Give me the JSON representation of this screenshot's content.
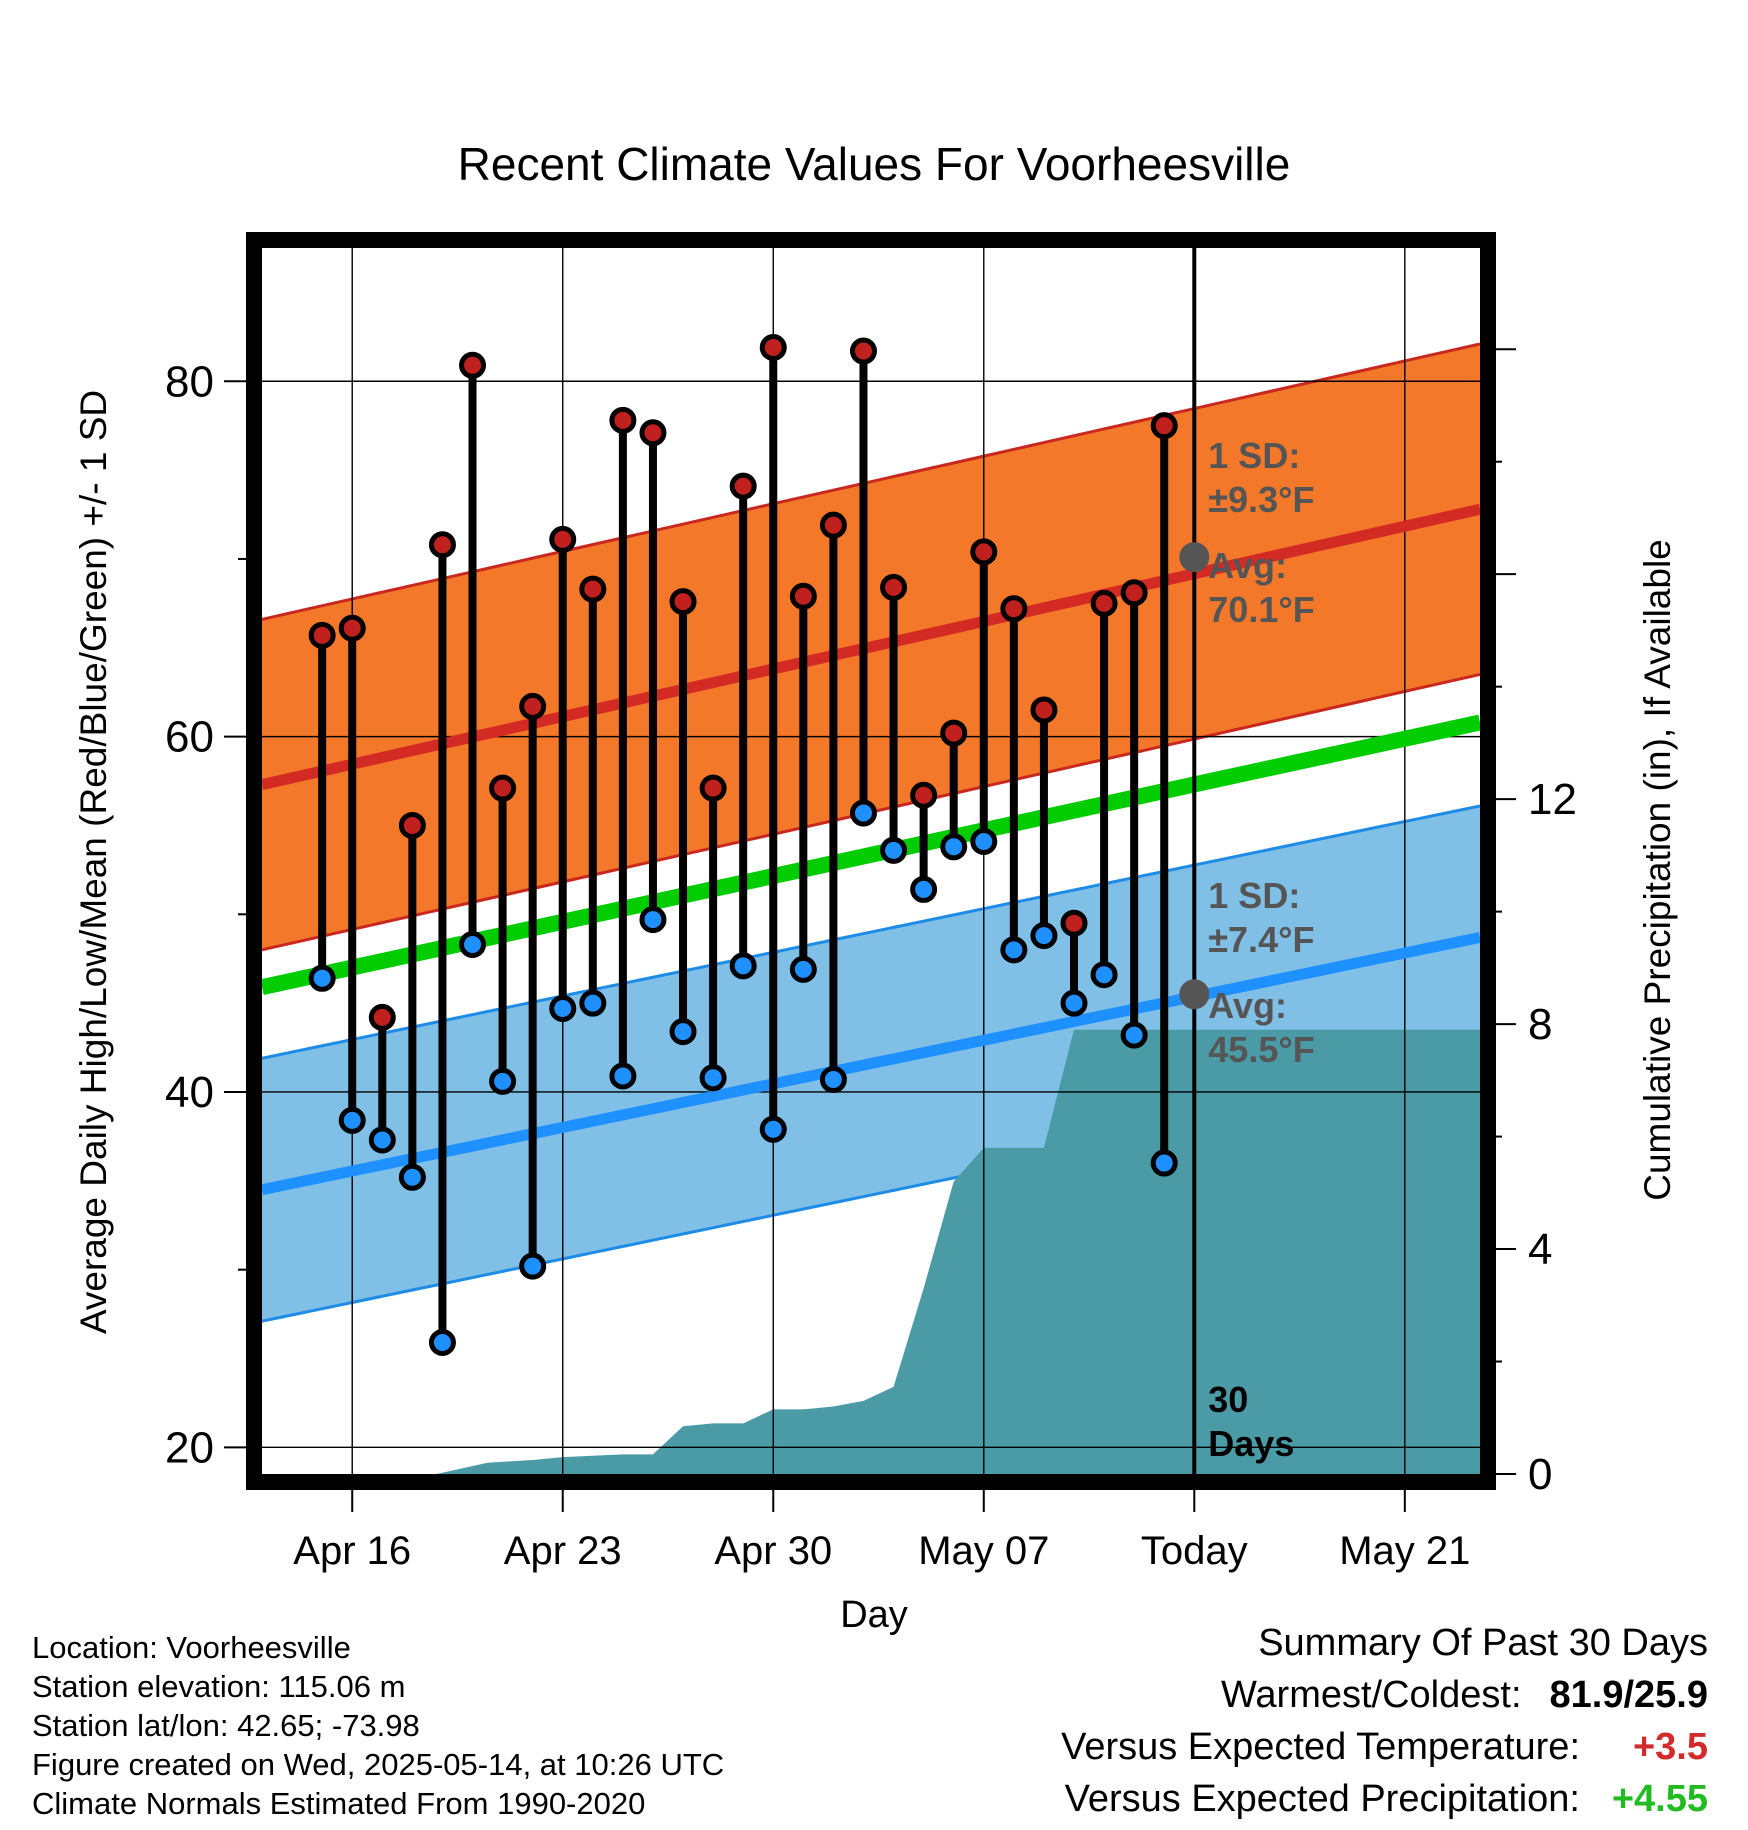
{
  "chart_data": {
    "type": "line",
    "title": "Recent Climate Values For Voorheesville",
    "xlabel": "Day",
    "ylabel": "Average Daily High/Low/Mean (Red/Blue/Green) +/- 1 SD",
    "y2label": "Cumulative Precipitation (in), If Available",
    "ylim": [
      18.5,
      87.5
    ],
    "y2lim": [
      0,
      21.8
    ],
    "yticks": [
      "20",
      "40",
      "60",
      "80"
    ],
    "y2ticks": [
      "0",
      "4",
      "8",
      "12"
    ],
    "xlim": [
      13.0,
      53.5
    ],
    "xticks": [
      {
        "day": 16,
        "label": "Apr 16"
      },
      {
        "day": 23,
        "label": "Apr 23"
      },
      {
        "day": 30,
        "label": "Apr 30"
      },
      {
        "day": 37,
        "label": "May 07"
      },
      {
        "day": 44,
        "label": "Today"
      },
      {
        "day": 51,
        "label": "May 21"
      }
    ],
    "today_day": 44,
    "today_label": [
      "30",
      "Days"
    ],
    "daily": {
      "day": [
        15,
        16,
        17,
        18,
        19,
        20,
        21,
        22,
        23,
        24,
        25,
        26,
        27,
        28,
        29,
        30,
        31,
        32,
        33,
        34,
        35,
        36,
        37,
        38,
        39,
        40,
        41,
        42,
        43
      ],
      "high": [
        65.7,
        66.1,
        44.2,
        55.0,
        70.8,
        80.9,
        57.1,
        61.7,
        71.1,
        68.3,
        77.8,
        77.1,
        67.6,
        57.1,
        74.1,
        81.9,
        67.9,
        71.9,
        81.7,
        68.4,
        56.7,
        60.2,
        70.4,
        67.2,
        61.5,
        49.5,
        67.5,
        68.1,
        77.5
      ],
      "low": [
        46.4,
        38.4,
        37.3,
        35.2,
        25.9,
        48.3,
        40.6,
        30.2,
        44.7,
        45.0,
        40.9,
        49.7,
        43.4,
        40.8,
        47.1,
        37.9,
        46.9,
        40.7,
        55.7,
        53.6,
        51.4,
        53.8,
        54.1,
        48.0,
        48.8,
        45.0,
        46.6,
        43.2,
        36.0
      ],
      "high_end": [
        77.9
      ]
    },
    "normals": {
      "high_avg": {
        "start": 57.3,
        "end": 72.8
      },
      "low_avg": {
        "start": 34.5,
        "end": 48.7
      },
      "mean_avg": {
        "start": 45.9,
        "end": 60.8
      },
      "high_sd": 9.3,
      "low_sd": 7.4
    },
    "annotations": {
      "high": {
        "sd_label": "1 SD:",
        "sd_value": "±9.3°F",
        "avg_label": "Avg:",
        "avg_value": "70.1°F",
        "avg_at_today": 70.1
      },
      "low": {
        "sd_label": "1 SD:",
        "sd_value": "±7.4°F",
        "avg_label": "Avg:",
        "avg_value": "45.5°F",
        "avg_at_today": 45.5
      }
    },
    "precip_cumulative": {
      "x": [
        13.0,
        18.8,
        20.5,
        22.0,
        23.0,
        25.0,
        26.0,
        27.0,
        28.0,
        29.0,
        30.0,
        31.0,
        32.0,
        33.0,
        34.0,
        35.0,
        36.0,
        37.0,
        38.0,
        39.0,
        40.0,
        53.5
      ],
      "value": [
        0.0,
        0.0,
        0.2,
        0.25,
        0.3,
        0.35,
        0.35,
        0.85,
        0.9,
        0.9,
        1.15,
        1.15,
        1.2,
        1.3,
        1.55,
        3.3,
        5.2,
        5.8,
        5.8,
        5.8,
        7.9,
        7.9
      ]
    },
    "grid": true,
    "colors": {
      "high_band": "#F4782A",
      "high_avg": "#D42A24",
      "high_edge": "#C8281E",
      "low_band": "#80BFE6",
      "low_avg": "#1E90FF",
      "low_edge": "#1E8CE6",
      "mean": "#00CC00",
      "precip": "#4A9BA5",
      "high_dot": "#C0201E",
      "low_dot": "#1E90FF",
      "annotation": "#555555"
    }
  },
  "footer": {
    "location": "Location: Voorheesville",
    "elevation": "Station elevation: 115.06 m",
    "latlon": "Station lat/lon: 42.65; -73.98",
    "created": "Figure created on Wed, 2025-05-14, at 10:26 UTC",
    "normals": "Climate Normals Estimated From 1990-2020"
  },
  "summary": {
    "heading": "Summary Of Past 30 Days",
    "warm_cold_label": "Warmest/Coldest:",
    "warm_cold_value": "81.9/25.9",
    "temp_label": "Versus Expected Temperature:",
    "temp_value": "+3.5",
    "temp_color": "#D22B2B",
    "precip_label": "Versus Expected Precipitation:",
    "precip_value": "+4.55",
    "precip_color": "#22BB22"
  }
}
